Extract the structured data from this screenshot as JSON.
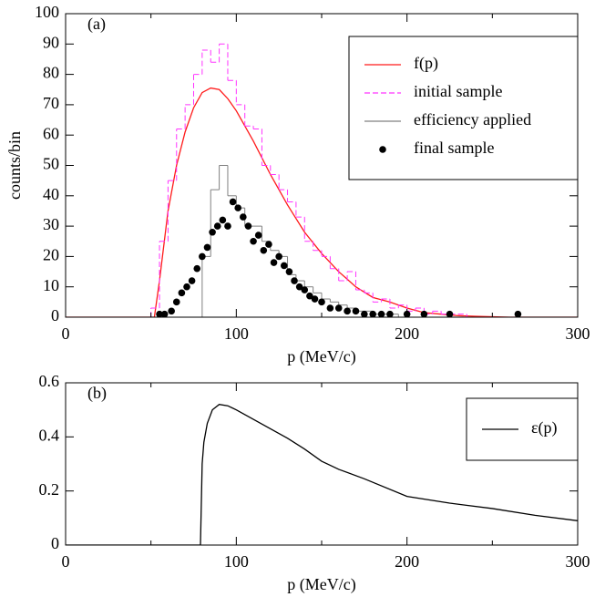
{
  "chart_data": [
    {
      "type": "line",
      "annotation": "(a)",
      "xlabel": "p (MeV/c)",
      "ylabel": "counts/bin",
      "xlim": [
        0,
        300
      ],
      "xticks": [
        0,
        100,
        200,
        300
      ],
      "xminorticks": [
        50,
        150,
        250
      ],
      "ylim": [
        0,
        100
      ],
      "yticks": [
        0,
        10,
        20,
        30,
        40,
        50,
        60,
        70,
        80,
        90,
        100
      ],
      "legend": "upper right",
      "series": [
        {
          "name": "f(p)",
          "color": "#ff1a1a",
          "style": "line",
          "x": [
            0,
            52,
            55,
            60,
            65,
            70,
            75,
            80,
            85,
            90,
            95,
            100,
            110,
            120,
            130,
            140,
            150,
            160,
            170,
            180,
            190,
            200,
            210,
            220,
            230,
            240,
            260,
            300
          ],
          "values": [
            0,
            0,
            12,
            35,
            50,
            61,
            69,
            74,
            75.5,
            75,
            72,
            68,
            58,
            47,
            37,
            28,
            21,
            15,
            10,
            6.5,
            5,
            3,
            1.5,
            1,
            0.5,
            0.3,
            0,
            0
          ]
        },
        {
          "name": "initial sample",
          "color": "#ff33ff",
          "style": "step",
          "line_style": "dashed",
          "bins": [
            50,
            55,
            60,
            65,
            70,
            75,
            80,
            85,
            90,
            95,
            100,
            105,
            110,
            115,
            120,
            125,
            130,
            135,
            140,
            145,
            150,
            155,
            160,
            165,
            170,
            175,
            180,
            185,
            190,
            195,
            200,
            205,
            210,
            215,
            220,
            225,
            230,
            235
          ],
          "values": [
            3,
            25,
            45,
            62,
            70,
            80,
            88,
            84,
            90,
            78,
            70,
            63,
            62,
            50,
            47,
            42,
            38,
            33,
            25,
            22,
            20,
            16,
            12,
            15,
            9,
            8,
            5,
            6,
            3,
            4,
            2,
            3,
            1,
            2,
            1,
            1,
            1
          ]
        },
        {
          "name": "efficiency applied",
          "color": "#808080",
          "style": "step",
          "line_style": "solid",
          "bins": [
            80,
            85,
            90,
            95,
            100,
            105,
            110,
            115,
            120,
            125,
            130,
            135,
            140,
            145,
            150,
            155,
            160,
            165,
            170,
            175,
            180,
            185,
            190,
            195,
            200
          ],
          "values": [
            20,
            42,
            50,
            40,
            36,
            30,
            30,
            25,
            22,
            20,
            14,
            12,
            10,
            8,
            6,
            5,
            4,
            3,
            2,
            2,
            1,
            1,
            1,
            0
          ]
        },
        {
          "name": "final sample",
          "color": "#000000",
          "style": "scatter",
          "x": [
            55,
            58,
            62,
            65,
            68,
            71,
            74,
            77,
            80,
            83,
            86,
            89,
            92,
            95,
            98,
            101,
            104,
            107,
            110,
            113,
            116,
            119,
            122,
            125,
            128,
            131,
            134,
            137,
            140,
            143,
            146,
            150,
            155,
            160,
            165,
            170,
            175,
            180,
            185,
            190,
            200,
            210,
            225,
            265
          ],
          "values": [
            1,
            1,
            2,
            5,
            8,
            10,
            12,
            16,
            20,
            23,
            28,
            30,
            32,
            30,
            38,
            36,
            33,
            30,
            25,
            27,
            22,
            24,
            18,
            20,
            17,
            15,
            12,
            10,
            9,
            7,
            6,
            5,
            3,
            3,
            2,
            2,
            1,
            1,
            1,
            1,
            1,
            1,
            1,
            1
          ]
        }
      ]
    },
    {
      "type": "line",
      "annotation": "(b)",
      "xlabel": "p (MeV/c)",
      "xlim": [
        0,
        300
      ],
      "xticks": [
        0,
        100,
        200,
        300
      ],
      "xminorticks": [
        50,
        150,
        250
      ],
      "ylim": [
        0,
        0.6
      ],
      "yticks": [
        0,
        0.2,
        0.4,
        0.6
      ],
      "legend": "upper right",
      "series": [
        {
          "name": "ε(p)",
          "color": "#000000",
          "style": "line",
          "x": [
            0,
            79,
            80,
            81,
            83,
            86,
            90,
            95,
            100,
            110,
            120,
            130,
            140,
            150,
            160,
            175,
            200,
            225,
            250,
            275,
            300
          ],
          "values": [
            0,
            0,
            0.3,
            0.38,
            0.45,
            0.5,
            0.52,
            0.515,
            0.5,
            0.465,
            0.43,
            0.395,
            0.355,
            0.31,
            0.28,
            0.245,
            0.18,
            0.155,
            0.135,
            0.11,
            0.09
          ]
        }
      ]
    }
  ]
}
